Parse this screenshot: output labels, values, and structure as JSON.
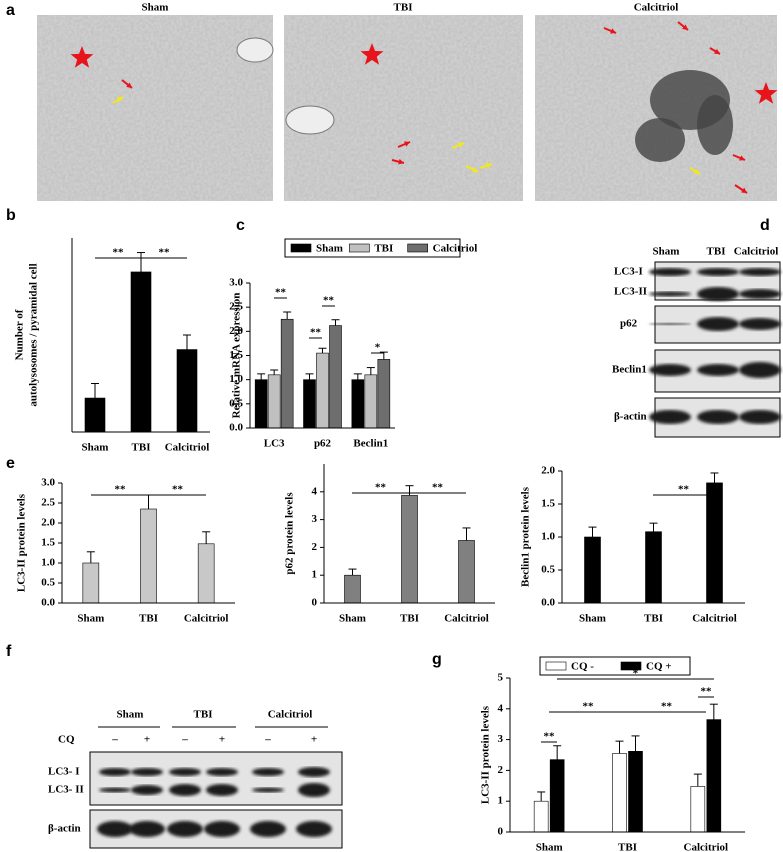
{
  "panel_labels": [
    "a",
    "b",
    "c",
    "d",
    "e",
    "f",
    "g"
  ],
  "micrographs": [
    "Sham",
    "TBI",
    "Calcitriol"
  ],
  "blot_d": {
    "lanes": [
      "Sham",
      "TBI",
      "Calcitriol"
    ],
    "rows": [
      "LC3-I",
      "LC3-II",
      "p62",
      "Beclin1",
      "β-actin"
    ]
  },
  "blot_f": {
    "groups": [
      "Sham",
      "TBI",
      "Calcitriol"
    ],
    "cq_label": "CQ",
    "signs": [
      "–",
      "+",
      "–",
      "+",
      "–",
      "+"
    ],
    "rows": [
      "LC3- I",
      "LC3- II",
      "β-actin"
    ]
  },
  "chart_data": [
    {
      "type": "bar",
      "y_label": [
        "Number of",
        "autolysosomes / pyramidal cell"
      ],
      "categories": [
        "Sham",
        "TBI",
        "Calcitriol"
      ],
      "values": [
        0.7,
        3.3,
        1.7
      ],
      "errors": [
        0.3,
        0.4,
        0.3
      ],
      "color": "#000000",
      "ylim": [
        0,
        4
      ],
      "annotations": [
        "**",
        "**"
      ]
    },
    {
      "type": "bar",
      "y_label": "Relative mRNA expression",
      "categories": [
        "LC3",
        "p62",
        "Beclin1"
      ],
      "series": [
        {
          "name": "Sham",
          "color": "#000000",
          "values": [
            1,
            1,
            1
          ],
          "errors": [
            0.12,
            0.12,
            0.12
          ]
        },
        {
          "name": "TBI",
          "color": "#c0c0c0",
          "values": [
            1.1,
            1.55,
            1.1
          ],
          "errors": [
            0.1,
            0.1,
            0.15
          ]
        },
        {
          "name": "Calcitriol",
          "color": "#6e6e6e",
          "values": [
            2.25,
            2.12,
            1.42
          ],
          "errors": [
            0.15,
            0.12,
            0.15
          ]
        }
      ],
      "ylim": [
        0,
        3
      ],
      "yticks": [
        {
          "value": 0,
          "label": "0.0"
        },
        {
          "value": 0.5,
          "label": "0.5"
        },
        {
          "value": 1,
          "label": "1.0"
        },
        {
          "value": 1.5,
          "label": "1.5"
        },
        {
          "value": 2,
          "label": "2.0"
        },
        {
          "value": 2.5,
          "label": "2.5"
        },
        {
          "value": 3,
          "label": "3.0"
        }
      ],
      "legend": "top",
      "annotations": [
        "**",
        "**",
        "**",
        "*"
      ]
    },
    {
      "type": "bar",
      "y_label": "LC3-II protein levels",
      "categories": [
        "Sham",
        "TBI",
        "Calcitriol"
      ],
      "values": [
        1,
        2.35,
        1.48
      ],
      "errors": [
        0.28,
        0.35,
        0.3
      ],
      "color": "#c8c8c8",
      "ylim": [
        0,
        3
      ],
      "yticks": [
        {
          "value": 0,
          "label": "0.0"
        },
        {
          "value": 0.5,
          "label": "0.5"
        },
        {
          "value": 1,
          "label": "1.0"
        },
        {
          "value": 1.5,
          "label": "1.5"
        },
        {
          "value": 2,
          "label": "2.0"
        },
        {
          "value": 2.5,
          "label": "2.5"
        },
        {
          "value": 3,
          "label": "3.0"
        }
      ],
      "annotations": [
        "**",
        "**"
      ]
    },
    {
      "type": "bar",
      "y_label": "p62 protein levels",
      "categories": [
        "Sham",
        "TBI",
        "Calcitriol"
      ],
      "values": [
        1,
        3.87,
        2.25
      ],
      "errors": [
        0.22,
        0.35,
        0.45
      ],
      "color": "#808080",
      "ylim": [
        0,
        5
      ],
      "yticks": [
        0,
        1,
        2,
        3,
        4
      ],
      "annotations": [
        "**",
        "**"
      ]
    },
    {
      "type": "bar",
      "y_label": "Beclin1 protein levels",
      "categories": [
        "Sham",
        "TBI",
        "Calcitriol"
      ],
      "values": [
        1,
        1.08,
        1.82
      ],
      "errors": [
        0.15,
        0.13,
        0.15
      ],
      "color": "#000000",
      "ylim": [
        0,
        2
      ],
      "yticks": [
        {
          "value": 0,
          "label": "0.0"
        },
        {
          "value": 0.5,
          "label": "0.5"
        },
        {
          "value": 1,
          "label": "1.0"
        },
        {
          "value": 1.5,
          "label": "1.5"
        },
        {
          "value": 2,
          "label": "2.0"
        }
      ],
      "annotations": [
        "**"
      ]
    },
    {
      "type": "bar",
      "y_label": "LC3-II protein levels",
      "categories": [
        "Sham",
        "TBI",
        "Calcitriol"
      ],
      "series": [
        {
          "name": "CQ -",
          "color": "#ffffff",
          "values": [
            1,
            2.55,
            1.48
          ],
          "errors": [
            0.3,
            0.4,
            0.4
          ]
        },
        {
          "name": "CQ +",
          "color": "#000000",
          "values": [
            2.35,
            2.62,
            3.65
          ],
          "errors": [
            0.45,
            0.5,
            0.5
          ]
        }
      ],
      "ylim": [
        0,
        5
      ],
      "yticks": [
        0,
        1,
        2,
        3,
        4,
        5
      ],
      "legend": "top",
      "annotations": [
        "*",
        "**",
        "**",
        "**",
        "**"
      ]
    }
  ]
}
